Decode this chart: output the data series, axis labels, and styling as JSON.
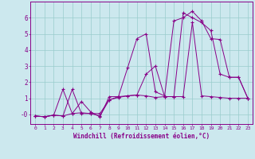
{
  "xlabel": "Windchill (Refroidissement éolien,°C)",
  "bg_color": "#cce8ee",
  "line_color": "#880088",
  "grid_color": "#99cccc",
  "xlim": [
    -0.5,
    23.5
  ],
  "ylim": [
    -0.6,
    7.0
  ],
  "xticks": [
    0,
    1,
    2,
    3,
    4,
    5,
    6,
    7,
    8,
    9,
    10,
    11,
    12,
    13,
    14,
    15,
    16,
    17,
    18,
    19,
    20,
    21,
    22,
    23
  ],
  "yticks": [
    0,
    1,
    2,
    3,
    4,
    5,
    6
  ],
  "ytick_labels": [
    "-0",
    "1",
    "2",
    "3",
    "4",
    "5",
    "6"
  ],
  "lines": [
    {
      "x": [
        0,
        1,
        2,
        3,
        4,
        5,
        6,
        7,
        8,
        9,
        10,
        11,
        12,
        13,
        14,
        15,
        16,
        17,
        18,
        19,
        20,
        21,
        22,
        23
      ],
      "y": [
        -0.1,
        -0.15,
        -0.05,
        -0.1,
        1.55,
        0.05,
        0.05,
        -0.1,
        0.9,
        1.1,
        2.9,
        4.7,
        5.0,
        1.4,
        1.15,
        5.8,
        6.0,
        6.4,
        5.8,
        4.7,
        4.65,
        2.3,
        2.3,
        1.0
      ]
    },
    {
      "x": [
        0,
        1,
        2,
        3,
        4,
        5,
        6,
        7,
        8,
        9,
        10,
        11,
        12,
        13,
        14,
        15,
        16,
        17,
        18,
        19,
        20,
        21,
        22,
        23
      ],
      "y": [
        -0.1,
        -0.15,
        -0.05,
        -0.1,
        0.05,
        0.8,
        0.15,
        -0.15,
        1.1,
        1.1,
        1.15,
        1.2,
        1.15,
        1.05,
        1.1,
        1.1,
        1.1,
        5.7,
        1.15,
        1.1,
        1.05,
        1.0,
        1.0,
        1.0
      ]
    },
    {
      "x": [
        0,
        1,
        2,
        3,
        4,
        5,
        6,
        7,
        8,
        9,
        10,
        11,
        12,
        13,
        14,
        15,
        16,
        17,
        18,
        19,
        20,
        21,
        22,
        23
      ],
      "y": [
        -0.1,
        -0.15,
        -0.05,
        1.55,
        0.05,
        0.1,
        0.05,
        0.05,
        0.9,
        1.05,
        1.15,
        1.2,
        2.5,
        3.0,
        1.1,
        1.1,
        6.3,
        6.0,
        5.7,
        5.2,
        2.5,
        2.3,
        2.3,
        1.0
      ]
    }
  ]
}
